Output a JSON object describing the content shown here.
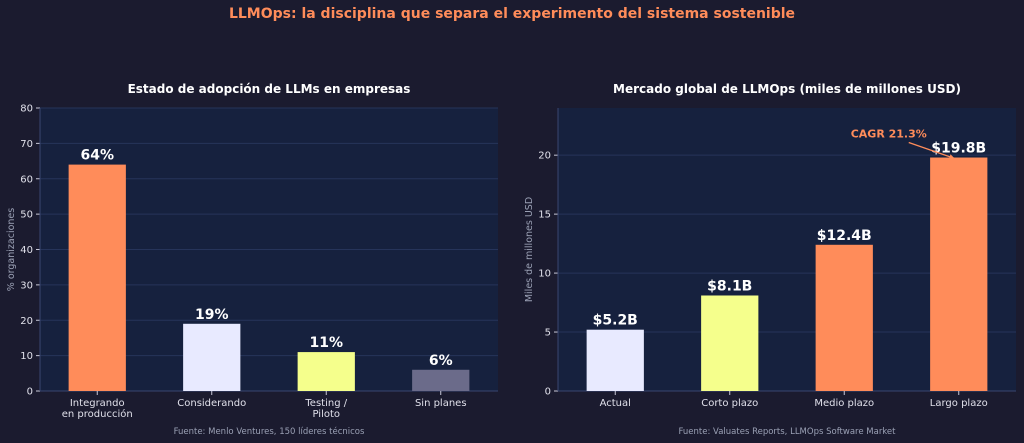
{
  "suptitle": "LLMOps: la disciplina que separa el experimento del sistema sostenible",
  "colors": {
    "background": "#1b1b2f",
    "panel": "#16213e",
    "suptitle": "#ff8c5a",
    "text": "#ffffff",
    "muted": "#9aa0b4",
    "grid": "#26345a"
  },
  "chart_data": [
    {
      "type": "bar",
      "title": "Estado de adopción de LLMs en empresas",
      "ylabel": "% organizaciones",
      "xlabel": "",
      "ylim": [
        0,
        80
      ],
      "yticks": [
        0,
        10,
        20,
        30,
        40,
        50,
        60,
        70,
        80
      ],
      "grid": true,
      "categories": [
        "Integrando\nen producción",
        "Considerando",
        "Testing /\nPiloto",
        "Sin planes"
      ],
      "values": [
        64,
        19,
        11,
        6
      ],
      "value_labels": [
        "64%",
        "19%",
        "11%",
        "6%"
      ],
      "bar_colors": [
        "#ff8c5a",
        "#e8eaff",
        "#f5ff8c",
        "#6b6b8a"
      ],
      "source": "Fuente: Menlo Ventures, 150 líderes técnicos"
    },
    {
      "type": "bar",
      "title": "Mercado global de LLMOps (miles de millones USD)",
      "ylabel": "Miles de millones USD",
      "xlabel": "",
      "ylim": [
        0,
        24
      ],
      "yticks": [
        0,
        5,
        10,
        15,
        20
      ],
      "grid": true,
      "categories": [
        "Actual",
        "Corto plazo",
        "Medio plazo",
        "Largo plazo"
      ],
      "values": [
        5.2,
        8.1,
        12.4,
        19.8
      ],
      "value_labels": [
        "$5.2B",
        "$8.1B",
        "$12.4B",
        "$19.8B"
      ],
      "bar_colors": [
        "#e8eaff",
        "#f5ff8c",
        "#ff8c5a",
        "#ff8c5a"
      ],
      "annotation": {
        "text": "CAGR 21.3%",
        "target_index": 3,
        "color": "#ff8c5a"
      },
      "source": "Fuente: Valuates Reports, LLMOps Software Market"
    }
  ]
}
